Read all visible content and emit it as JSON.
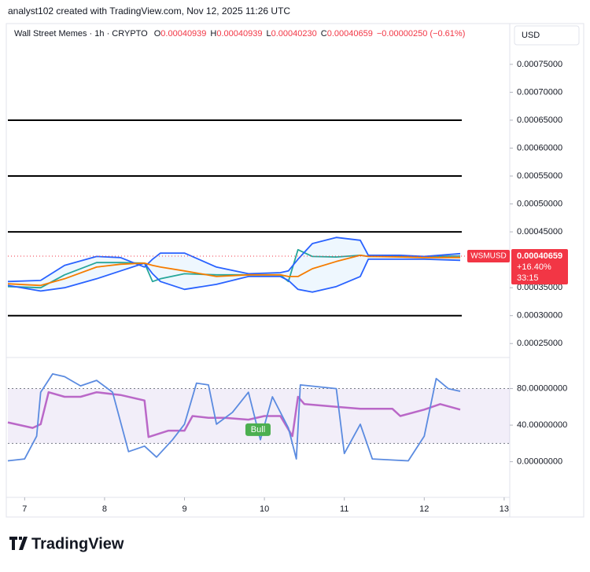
{
  "header": {
    "attribution": "analyst102 created with TradingView.com, Nov 12, 2025 11:26 UTC",
    "symbol": "Wall Street Memes · 1h · CRYPTO",
    "ohlc": [
      {
        "label": "O",
        "value": "0.00040939"
      },
      {
        "label": "H",
        "value": "0.00040939"
      },
      {
        "label": "L",
        "value": "0.00040230"
      },
      {
        "label": "C",
        "value": "0.00040659"
      }
    ],
    "change": "−0.00000250 (−0.61%)",
    "currency": "USD"
  },
  "chart_data": [
    {
      "type": "line",
      "xlim": [
        6.79,
        13.07
      ],
      "ylim": [
        0.000225,
        0.000823
      ],
      "yticks": [
        {
          "value": 0.00075,
          "label": "0.00075000"
        },
        {
          "value": 0.0007,
          "label": "0.00070000"
        },
        {
          "value": 0.00065,
          "label": "0.00065000"
        },
        {
          "value": 0.0006,
          "label": "0.00060000"
        },
        {
          "value": 0.00055,
          "label": "0.00055000"
        },
        {
          "value": 0.0005,
          "label": "0.00050000"
        },
        {
          "value": 0.00045,
          "label": "0.00045000"
        },
        {
          "value": 0.00035,
          "label": "0.00035000"
        },
        {
          "value": 0.0003,
          "label": "0.00030000"
        },
        {
          "value": 0.00025,
          "label": "0.00025000"
        }
      ],
      "levels": [
        0.00065,
        0.00055,
        0.00045,
        0.0003
      ],
      "x": [
        6.79,
        7.2,
        7.5,
        7.9,
        8.2,
        8.5,
        8.6,
        8.7,
        9.0,
        9.4,
        9.8,
        10.2,
        10.3,
        10.42,
        10.6,
        10.9,
        11.2,
        11.3,
        11.7,
        12.0,
        12.45
      ],
      "series": [
        {
          "color": "#26a69a",
          "values": [
            0.000352,
            0.00035,
            0.000373,
            0.000395,
            0.000395,
            0.000394,
            0.000361,
            0.000366,
            0.000375,
            0.000373,
            0.000373,
            0.000373,
            0.000361,
            0.000418,
            0.000406,
            0.000405,
            0.000408,
            0.000406,
            0.000406,
            0.000406,
            0.00040659
          ]
        },
        {
          "color": "#2962ff",
          "values": [
            0.000361,
            0.000363,
            0.00039,
            0.000406,
            0.000404,
            0.000387,
            0.000401,
            0.000412,
            0.000412,
            0.000387,
            0.000375,
            0.000377,
            0.00038,
            0.000401,
            0.000429,
            0.00044,
            0.000435,
            0.000408,
            0.000408,
            0.000406,
            0.000411
          ]
        },
        {
          "color": "#2962ff",
          "values": [
            0.000354,
            0.000344,
            0.00035,
            0.000366,
            0.00038,
            0.000394,
            0.000375,
            0.000361,
            0.000347,
            0.000356,
            0.00037,
            0.00037,
            0.000363,
            0.000347,
            0.000342,
            0.000352,
            0.00037,
            0.000401,
            0.000401,
            0.000401,
            0.000399
          ]
        },
        {
          "color": "#f57c00",
          "values": [
            0.000357,
            0.000354,
            0.000366,
            0.000387,
            0.000392,
            0.000394,
            0.00039,
            0.000387,
            0.00038,
            0.00037,
            0.000373,
            0.000373,
            0.00037,
            0.00037,
            0.000384,
            0.000397,
            0.000408,
            0.000406,
            0.000405,
            0.000404,
            0.000404
          ]
        }
      ],
      "price_tag": {
        "symbol": "WSMUSD",
        "price": "0.00040659",
        "change": "+16.40%",
        "countdown": "33:15",
        "color": "#f23645"
      }
    },
    {
      "type": "line",
      "xlim": [
        6.79,
        13.07
      ],
      "ylim": [
        -39,
        114
      ],
      "xticks": [
        7,
        8,
        9,
        10,
        11,
        12,
        13
      ],
      "yticks": [
        {
          "value": 80,
          "label": "80.00000000"
        },
        {
          "value": 40,
          "label": "40.00000000"
        },
        {
          "value": 0,
          "label": "0.00000000"
        }
      ],
      "band": [
        20,
        80
      ],
      "series": [
        {
          "color": "#ba68c8",
          "x": [
            6.79,
            7.1,
            7.2,
            7.3,
            7.5,
            7.7,
            7.9,
            8.2,
            8.5,
            8.55,
            8.8,
            9.0,
            9.1,
            9.3,
            9.5,
            9.8,
            10.0,
            10.2,
            10.35,
            10.42,
            10.5,
            10.9,
            11.2,
            11.6,
            11.7,
            12.0,
            12.2,
            12.45
          ],
          "values": [
            43,
            37,
            41,
            76,
            71,
            71,
            76,
            73,
            67,
            27,
            34,
            34,
            50,
            48,
            48,
            46,
            50,
            50,
            28,
            71,
            63,
            60,
            58,
            58,
            50,
            57,
            63,
            57
          ]
        },
        {
          "color": "#5b8be0",
          "x": [
            6.79,
            7.0,
            7.15,
            7.2,
            7.35,
            7.5,
            7.7,
            7.9,
            8.1,
            8.3,
            8.5,
            8.65,
            8.85,
            9.0,
            9.15,
            9.3,
            9.4,
            9.6,
            9.8,
            9.95,
            10.1,
            10.3,
            10.4,
            10.45,
            10.9,
            11.0,
            11.2,
            11.35,
            11.8,
            12.0,
            12.15,
            12.3,
            12.45
          ],
          "values": [
            1,
            3,
            28,
            76,
            96,
            93,
            83,
            89,
            76,
            11,
            17,
            5,
            24,
            41,
            86,
            84,
            41,
            54,
            76,
            24,
            71,
            37,
            3,
            84,
            80,
            9,
            41,
            3,
            1,
            28,
            91,
            80,
            77
          ]
        }
      ],
      "annotation": {
        "text": "Bull",
        "x": 9.92,
        "y": 35,
        "color": "#4caf50"
      }
    }
  ],
  "footer": {
    "logo": "TradingView"
  }
}
